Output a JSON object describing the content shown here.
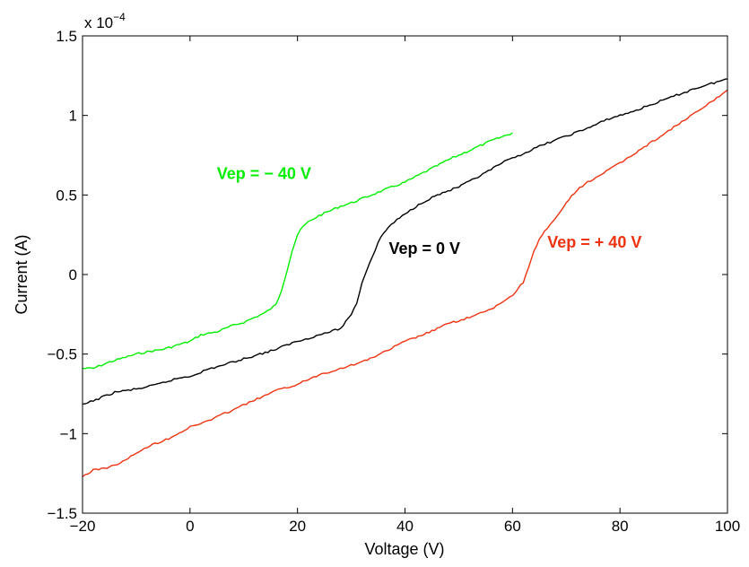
{
  "chart_data": {
    "type": "line",
    "title": "",
    "xlabel": "Voltage (V)",
    "ylabel": "Current (A)",
    "xlim": [
      -20,
      100
    ],
    "ylim": [
      -1.5,
      1.5
    ],
    "y_multiplier_label": "x 10",
    "y_multiplier_exponent": "−4",
    "grid": false,
    "x_ticks": [
      -20,
      0,
      20,
      40,
      60,
      80,
      100
    ],
    "x_tick_labels": [
      "−20",
      "0",
      "20",
      "40",
      "60",
      "80",
      "100"
    ],
    "y_ticks": [
      -1.5,
      -1,
      -0.5,
      0,
      0.5,
      1,
      1.5
    ],
    "y_tick_labels": [
      "−1.5",
      "−1",
      "−0.5",
      "0",
      "0.5",
      "1",
      "1.5"
    ],
    "series": [
      {
        "color": "#00ee00",
        "x": [
          -20,
          -18,
          -15,
          -12,
          -10,
          -7,
          -5,
          -2,
          0,
          2,
          5,
          8,
          10,
          12,
          14,
          16,
          17,
          18,
          19,
          20,
          21,
          22,
          24,
          26,
          28,
          30,
          33,
          36,
          40,
          44,
          48,
          52,
          56,
          60
        ],
        "y": [
          -0.59,
          -0.59,
          -0.55,
          -0.52,
          -0.5,
          -0.48,
          -0.47,
          -0.44,
          -0.42,
          -0.38,
          -0.36,
          -0.32,
          -0.3,
          -0.27,
          -0.24,
          -0.19,
          -0.1,
          0.02,
          0.15,
          0.25,
          0.3,
          0.33,
          0.37,
          0.4,
          0.43,
          0.45,
          0.49,
          0.53,
          0.58,
          0.65,
          0.72,
          0.78,
          0.84,
          0.89
        ]
      },
      {
        "color": "#000000",
        "x": [
          -20,
          -17,
          -14,
          -10,
          -7,
          -5,
          -2,
          0,
          3,
          6,
          10,
          13,
          16,
          19,
          22,
          25,
          28,
          30,
          31,
          32,
          33,
          34,
          35,
          36,
          37,
          38,
          40,
          43,
          46,
          50,
          54,
          58,
          62,
          66,
          70,
          74,
          78,
          82,
          86,
          90,
          94,
          100
        ],
        "y": [
          -0.82,
          -0.78,
          -0.74,
          -0.72,
          -0.7,
          -0.68,
          -0.65,
          -0.64,
          -0.6,
          -0.57,
          -0.53,
          -0.5,
          -0.47,
          -0.43,
          -0.4,
          -0.37,
          -0.34,
          -0.25,
          -0.18,
          -0.05,
          0.04,
          0.12,
          0.2,
          0.26,
          0.3,
          0.33,
          0.38,
          0.45,
          0.5,
          0.55,
          0.62,
          0.7,
          0.76,
          0.82,
          0.87,
          0.92,
          0.98,
          1.02,
          1.07,
          1.12,
          1.17,
          1.23
        ]
      },
      {
        "color": "#ee3311",
        "x": [
          -20,
          -18,
          -15,
          -12,
          -10,
          -7,
          -4,
          0,
          4,
          8,
          12,
          16,
          20,
          24,
          28,
          32,
          36,
          40,
          44,
          48,
          52,
          56,
          60,
          62,
          63,
          64,
          65,
          66,
          67,
          68,
          70,
          72,
          74,
          76,
          80,
          84,
          88,
          92,
          96,
          100
        ],
        "y": [
          -1.27,
          -1.23,
          -1.21,
          -1.17,
          -1.12,
          -1.07,
          -1.03,
          -0.96,
          -0.91,
          -0.85,
          -0.79,
          -0.73,
          -0.69,
          -0.63,
          -0.59,
          -0.55,
          -0.49,
          -0.42,
          -0.37,
          -0.31,
          -0.27,
          -0.22,
          -0.13,
          -0.05,
          0.05,
          0.15,
          0.22,
          0.27,
          0.31,
          0.35,
          0.45,
          0.53,
          0.58,
          0.62,
          0.7,
          0.79,
          0.88,
          0.97,
          1.06,
          1.16
        ]
      }
    ],
    "annotations": [
      {
        "text": "Vep = − 40 V",
        "x": 5,
        "y": 0.6,
        "color": "#00ee00"
      },
      {
        "text": "Vep = 0 V",
        "x": 37,
        "y": 0.13,
        "color": "#000000"
      },
      {
        "text": "Vep = + 40 V",
        "x": 66.5,
        "y": 0.17,
        "color": "#ee3311"
      }
    ]
  }
}
